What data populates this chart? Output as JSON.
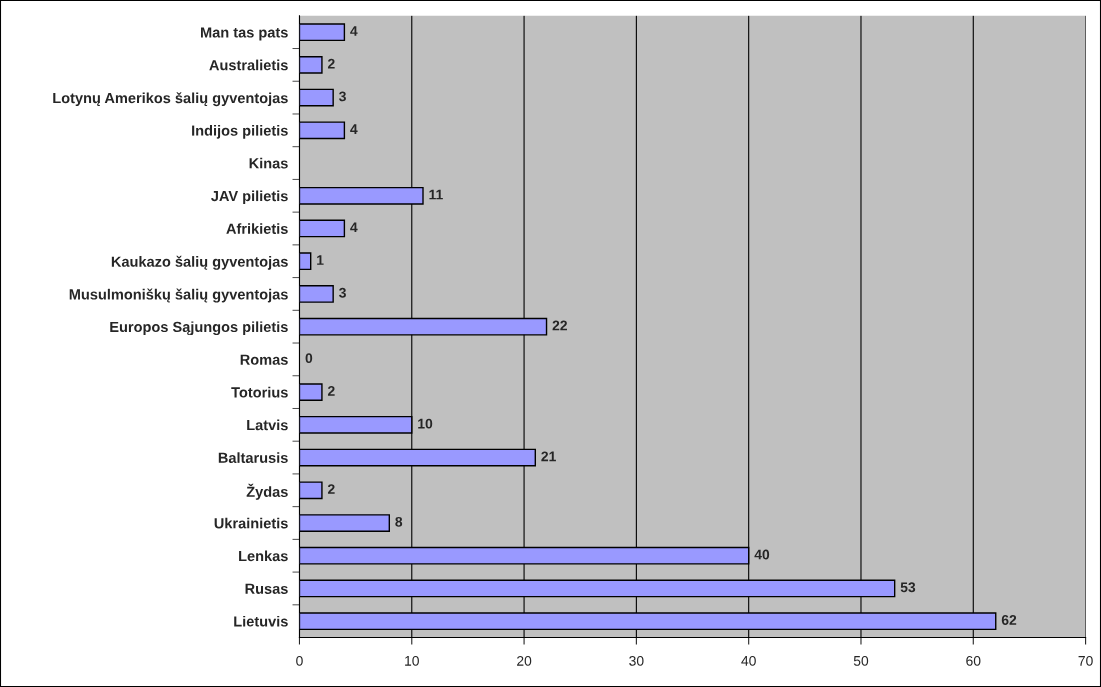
{
  "chart_data": {
    "type": "bar",
    "orientation": "horizontal",
    "categories": [
      "Man tas pats",
      "Australietis",
      "Lotynų Amerikos šalių gyventojas",
      "Indijos pilietis",
      "Kinas",
      "JAV pilietis",
      "Afrikietis",
      "Kaukazo šalių gyventojas",
      "Musulmoniškų šalių gyventojas",
      "Europos Sąjungos pilietis",
      "Romas",
      "Totorius",
      "Latvis",
      "Baltarusis",
      "Žydas",
      "Ukrainietis",
      "Lenkas",
      "Rusas",
      "Lietuvis"
    ],
    "values": [
      4,
      2,
      3,
      4,
      null,
      11,
      4,
      1,
      3,
      22,
      0,
      2,
      10,
      21,
      2,
      8,
      40,
      53,
      62
    ],
    "color": "#9999ff",
    "xlim": [
      0,
      70
    ],
    "xticks": [
      0,
      10,
      20,
      30,
      40,
      50,
      60,
      70
    ],
    "grid": "x",
    "data_labels": true
  }
}
